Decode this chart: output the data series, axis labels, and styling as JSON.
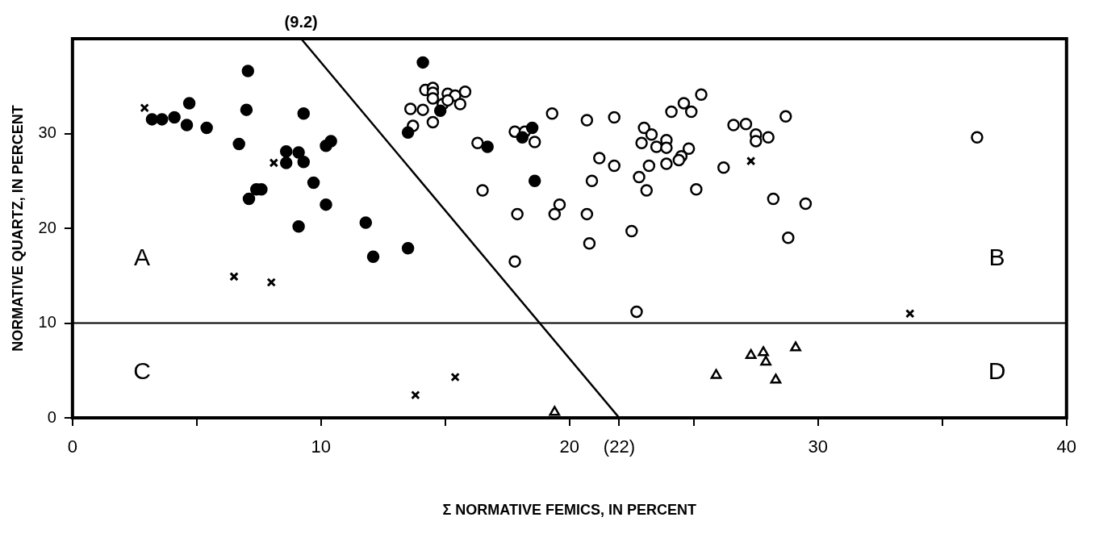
{
  "chart_data": {
    "type": "scatter",
    "xlabel": "Σ NORMATIVE FEMICS, IN PERCENT",
    "ylabel": "NORMATIVE QUARTZ, IN PERCENT",
    "xlim": [
      0,
      40
    ],
    "ylim": [
      0,
      40
    ],
    "xticks": [
      0,
      {
        "value": 5,
        "label": null
      },
      10,
      {
        "value": 15,
        "label": null
      },
      20,
      {
        "value": 22,
        "label": "(22)"
      },
      {
        "value": 25,
        "label": null
      },
      30,
      {
        "value": 35,
        "label": null
      },
      40
    ],
    "yticks": [
      0,
      10,
      20,
      30
    ],
    "grid": false,
    "legend": false,
    "ref_lines": [
      {
        "axis": "y",
        "value": 10,
        "color": "#000000"
      }
    ],
    "annotations": [
      {
        "text": "(9.2)",
        "x": 9.2,
        "y": 40
      },
      "A",
      "B",
      "C",
      "D"
    ],
    "series": [
      {
        "marker": "circle",
        "color": "#000000",
        "x": [
          7.06,
          4.7,
          3.2,
          3.6,
          4.1,
          4.6,
          5.4,
          7.0,
          9.3,
          6.7,
          10.2,
          10.4,
          8.6,
          9.1,
          8.6,
          9.3,
          9.7,
          7.4,
          7.6,
          7.1,
          10.2,
          9.1,
          11.8,
          12.1,
          13.5,
          13.5,
          14.1,
          14.8,
          16.7,
          18.1,
          18.5,
          18.6
        ],
        "values": [
          36.6,
          33.2,
          31.5,
          31.5,
          31.7,
          30.9,
          30.6,
          32.5,
          32.1,
          28.9,
          28.7,
          29.2,
          28.1,
          28.0,
          26.9,
          27.0,
          24.8,
          24.1,
          24.1,
          23.1,
          22.5,
          20.2,
          20.6,
          17.0,
          17.9,
          30.1,
          37.5,
          32.4,
          28.6,
          29.6,
          30.6,
          25.0
        ]
      },
      {
        "marker": "circle",
        "color": "#ffffff",
        "x": [
          14.2,
          14.5,
          14.5,
          14.5,
          15.1,
          15.4,
          15.8,
          14.9,
          15.1,
          15.6,
          13.6,
          14.1,
          14.5,
          13.7,
          16.3,
          17.8,
          18.2,
          18.6,
          19.3,
          20.7,
          21.8,
          16.5,
          21.2,
          21.8,
          20.9,
          19.6,
          19.4,
          17.9,
          20.7,
          20.8,
          17.8,
          22.5,
          23.0,
          23.3,
          22.9,
          23.5,
          23.9,
          23.9,
          24.1,
          24.6,
          24.9,
          25.3,
          24.8,
          24.5,
          24.4,
          23.2,
          23.9,
          22.8,
          23.1,
          25.1,
          26.2,
          26.6,
          27.1,
          27.5,
          27.5,
          28.0,
          28.7,
          28.2,
          29.5,
          28.8,
          36.4,
          22.7
        ],
        "values": [
          34.6,
          34.8,
          34.3,
          33.7,
          34.2,
          34.0,
          34.4,
          33.1,
          33.5,
          33.1,
          32.6,
          32.5,
          31.2,
          30.8,
          29.0,
          30.2,
          30.2,
          29.1,
          32.1,
          31.4,
          31.7,
          24.0,
          27.4,
          26.6,
          25.0,
          22.5,
          21.5,
          21.5,
          21.5,
          18.4,
          16.5,
          19.7,
          30.6,
          29.9,
          29.0,
          28.6,
          29.3,
          28.5,
          32.3,
          33.2,
          32.3,
          34.1,
          28.4,
          27.6,
          27.2,
          26.6,
          26.8,
          25.4,
          24.0,
          24.1,
          26.4,
          30.9,
          31.0,
          29.9,
          29.2,
          29.6,
          31.8,
          23.1,
          22.6,
          19.0,
          29.6,
          11.2
        ]
      },
      {
        "marker": "cross",
        "color": "#000000",
        "x": [
          2.9,
          8.1,
          6.5,
          8.0,
          27.3,
          33.7,
          13.8,
          15.4
        ],
        "values": [
          32.7,
          26.9,
          14.9,
          14.3,
          27.1,
          11.0,
          2.4,
          4.3
        ]
      },
      {
        "marker": "triangle",
        "color": "#ffffff",
        "x": [
          19.4,
          25.9,
          27.3,
          27.8,
          27.9,
          28.3,
          29.1
        ],
        "values": [
          0.6,
          4.5,
          6.6,
          6.9,
          5.9,
          4.0,
          7.4
        ]
      },
      {
        "type": "line",
        "marker": "none",
        "line_style": "solid",
        "color": "#000000",
        "x": [
          9.2,
          22
        ],
        "values": [
          40,
          0
        ]
      }
    ]
  }
}
